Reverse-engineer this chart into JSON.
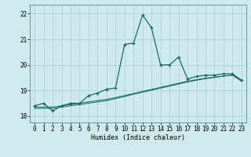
{
  "xlabel": "Humidex (Indice chaleur)",
  "background_color": "#ceeaed",
  "grid_color": "#aed4d8",
  "line_color": "#1a6b62",
  "x_values": [
    0,
    1,
    2,
    3,
    4,
    5,
    6,
    7,
    8,
    9,
    10,
    11,
    12,
    13,
    14,
    15,
    16,
    17,
    18,
    19,
    20,
    21,
    22,
    23
  ],
  "line1_y": [
    18.4,
    18.5,
    18.2,
    18.4,
    18.5,
    18.5,
    18.8,
    18.9,
    19.05,
    19.1,
    20.8,
    20.85,
    21.95,
    21.45,
    20.0,
    20.0,
    20.3,
    19.45,
    19.55,
    19.6,
    19.6,
    19.65,
    19.65,
    19.4
  ],
  "line2_y": [
    18.35,
    18.35,
    18.35,
    18.4,
    18.45,
    18.5,
    18.55,
    18.6,
    18.65,
    18.72,
    18.8,
    18.88,
    18.96,
    19.04,
    19.12,
    19.2,
    19.28,
    19.36,
    19.42,
    19.48,
    19.52,
    19.56,
    19.6,
    19.38
  ],
  "line3_y": [
    18.3,
    18.3,
    18.3,
    18.35,
    18.4,
    18.45,
    18.5,
    18.55,
    18.6,
    18.68,
    18.76,
    18.85,
    18.93,
    19.01,
    19.09,
    19.17,
    19.25,
    19.33,
    19.4,
    19.46,
    19.51,
    19.56,
    19.6,
    19.36
  ],
  "ylim": [
    17.75,
    22.35
  ],
  "yticks": [
    18,
    19,
    20,
    21,
    22
  ],
  "xticks": [
    0,
    1,
    2,
    3,
    4,
    5,
    6,
    7,
    8,
    9,
    10,
    11,
    12,
    13,
    14,
    15,
    16,
    17,
    18,
    19,
    20,
    21,
    22,
    23
  ],
  "tick_fontsize": 5.5,
  "xlabel_fontsize": 6.0
}
